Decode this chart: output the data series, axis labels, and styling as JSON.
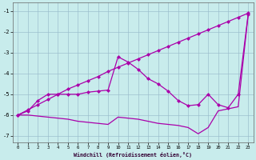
{
  "background_color": "#c8ecec",
  "line_color": "#aa00aa",
  "grid_color": "#99bbcc",
  "xlabel": "Windchill (Refroidissement éolien,°C)",
  "xlim": [
    -0.5,
    23.5
  ],
  "ylim": [
    -7.3,
    -0.6
  ],
  "yticks": [
    -7,
    -6,
    -5,
    -4,
    -3,
    -2,
    -1
  ],
  "xticks": [
    0,
    1,
    2,
    3,
    4,
    5,
    6,
    7,
    8,
    9,
    10,
    11,
    12,
    13,
    14,
    15,
    16,
    17,
    18,
    19,
    20,
    21,
    22,
    23
  ],
  "line1_x": [
    0,
    1,
    2,
    3,
    4,
    5,
    6,
    7,
    8,
    9,
    10,
    11,
    12,
    13,
    14,
    15,
    16,
    17,
    18,
    19,
    20,
    21,
    22,
    23
  ],
  "line1_y": [
    -6.0,
    -5.75,
    -5.5,
    -5.25,
    -5.0,
    -4.75,
    -4.55,
    -4.35,
    -4.15,
    -3.9,
    -3.7,
    -3.5,
    -3.3,
    -3.1,
    -2.9,
    -2.7,
    -2.5,
    -2.3,
    -2.1,
    -1.9,
    -1.7,
    -1.5,
    -1.3,
    -1.1
  ],
  "line2_x": [
    0,
    1,
    2,
    3,
    4,
    5,
    6,
    7,
    8,
    9,
    10,
    11,
    12,
    13,
    14,
    15,
    16,
    17,
    18,
    19,
    20,
    21,
    22,
    23
  ],
  "line2_y": [
    -6.0,
    -5.8,
    -5.3,
    -5.0,
    -5.0,
    -5.0,
    -5.0,
    -4.9,
    -4.85,
    -4.8,
    -3.2,
    -3.45,
    -3.8,
    -4.25,
    -4.5,
    -4.85,
    -5.3,
    -5.55,
    -5.5,
    -5.0,
    -5.5,
    -5.65,
    -5.0,
    -1.15
  ],
  "line3_x": [
    0,
    1,
    2,
    3,
    4,
    5,
    6,
    7,
    8,
    9,
    10,
    11,
    12,
    13,
    14,
    15,
    16,
    17,
    18,
    19,
    20,
    21,
    22,
    23
  ],
  "line3_y": [
    -6.0,
    -6.0,
    -6.05,
    -6.1,
    -6.15,
    -6.2,
    -6.3,
    -6.35,
    -6.4,
    -6.45,
    -6.1,
    -6.15,
    -6.2,
    -6.3,
    -6.4,
    -6.45,
    -6.5,
    -6.6,
    -6.9,
    -6.6,
    -5.8,
    -5.7,
    -5.6,
    -1.15
  ],
  "markersize": 2.5
}
